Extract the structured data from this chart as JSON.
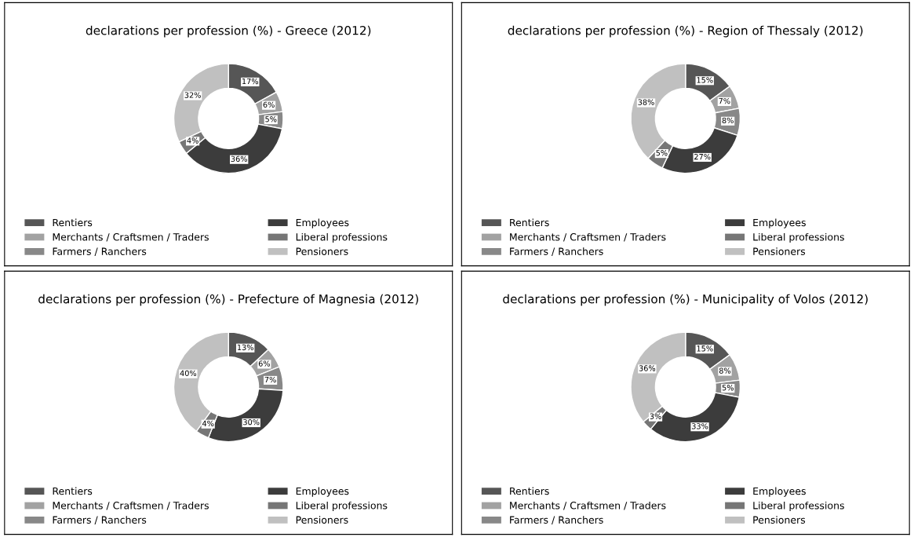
{
  "chart_data": [
    {
      "type": "donut",
      "title": "declarations per profession (%) - Greece (2012)",
      "categories": [
        "Rentiers",
        "Merchants / Craftsmen / Traders",
        "Farmers / Ranchers",
        "Employees",
        "Liberal professions",
        "Pensioners"
      ],
      "values": [
        17,
        6,
        5,
        36,
        4,
        32
      ],
      "value_labels": [
        "17%",
        "6%",
        "5%",
        "36%",
        "4%",
        "32%"
      ],
      "colors": [
        "#565656",
        "#a2a2a2",
        "#888888",
        "#3c3c3c",
        "#767676",
        "#c0c0c0"
      ],
      "legend": "bottom"
    },
    {
      "type": "donut",
      "title": "declarations per profession (%) - Region of Thessaly (2012)",
      "categories": [
        "Rentiers",
        "Merchants / Craftsmen / Traders",
        "Farmers / Ranchers",
        "Employees",
        "Liberal professions",
        "Pensioners"
      ],
      "values": [
        15,
        7,
        8,
        27,
        5,
        38
      ],
      "value_labels": [
        "15%",
        "7%",
        "8%",
        "27%",
        "5%",
        "38%"
      ],
      "colors": [
        "#565656",
        "#a2a2a2",
        "#888888",
        "#3c3c3c",
        "#767676",
        "#c0c0c0"
      ],
      "legend": "bottom"
    },
    {
      "type": "donut",
      "title": "declarations per profession (%) - Prefecture of Magnesia (2012)",
      "categories": [
        "Rentiers",
        "Merchants / Craftsmen / Traders",
        "Farmers / Ranchers",
        "Employees",
        "Liberal professions",
        "Pensioners"
      ],
      "values": [
        13,
        6,
        7,
        30,
        4,
        40
      ],
      "value_labels": [
        "13%",
        "6%",
        "7%",
        "30%",
        "4%",
        "40%"
      ],
      "colors": [
        "#565656",
        "#a2a2a2",
        "#888888",
        "#3c3c3c",
        "#767676",
        "#c0c0c0"
      ],
      "legend": "bottom"
    },
    {
      "type": "donut",
      "title": "declarations per profession (%) - Municipality of Volos (2012)",
      "categories": [
        "Rentiers",
        "Merchants / Craftsmen / Traders",
        "Farmers / Ranchers",
        "Employees",
        "Liberal professions",
        "Pensioners"
      ],
      "values": [
        15,
        8,
        5,
        33,
        3,
        36
      ],
      "value_labels": [
        "15%",
        "8%",
        "5%",
        "33%",
        "3%",
        "36%"
      ],
      "colors": [
        "#565656",
        "#a2a2a2",
        "#888888",
        "#3c3c3c",
        "#767676",
        "#c0c0c0"
      ],
      "legend": "bottom"
    }
  ]
}
